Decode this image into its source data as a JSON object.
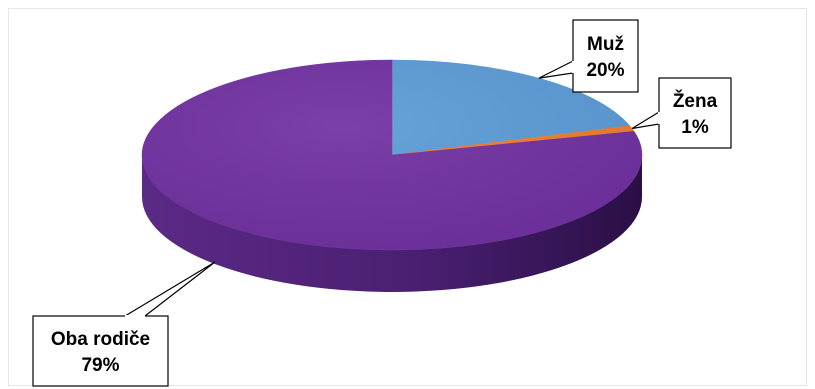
{
  "chart_data": {
    "type": "pie",
    "style": "3d",
    "title": "",
    "slices": [
      {
        "label": "Muž",
        "value": 20,
        "value_label": "20%",
        "color": "#5b9bd5"
      },
      {
        "label": "Žena",
        "value": 1,
        "value_label": "1%",
        "color": "#ed7d31"
      },
      {
        "label": "Oba rodiče",
        "value": 79,
        "value_label": "79%",
        "color": "#7030a0"
      }
    ],
    "legend": "none",
    "data_labels": "callouts"
  }
}
